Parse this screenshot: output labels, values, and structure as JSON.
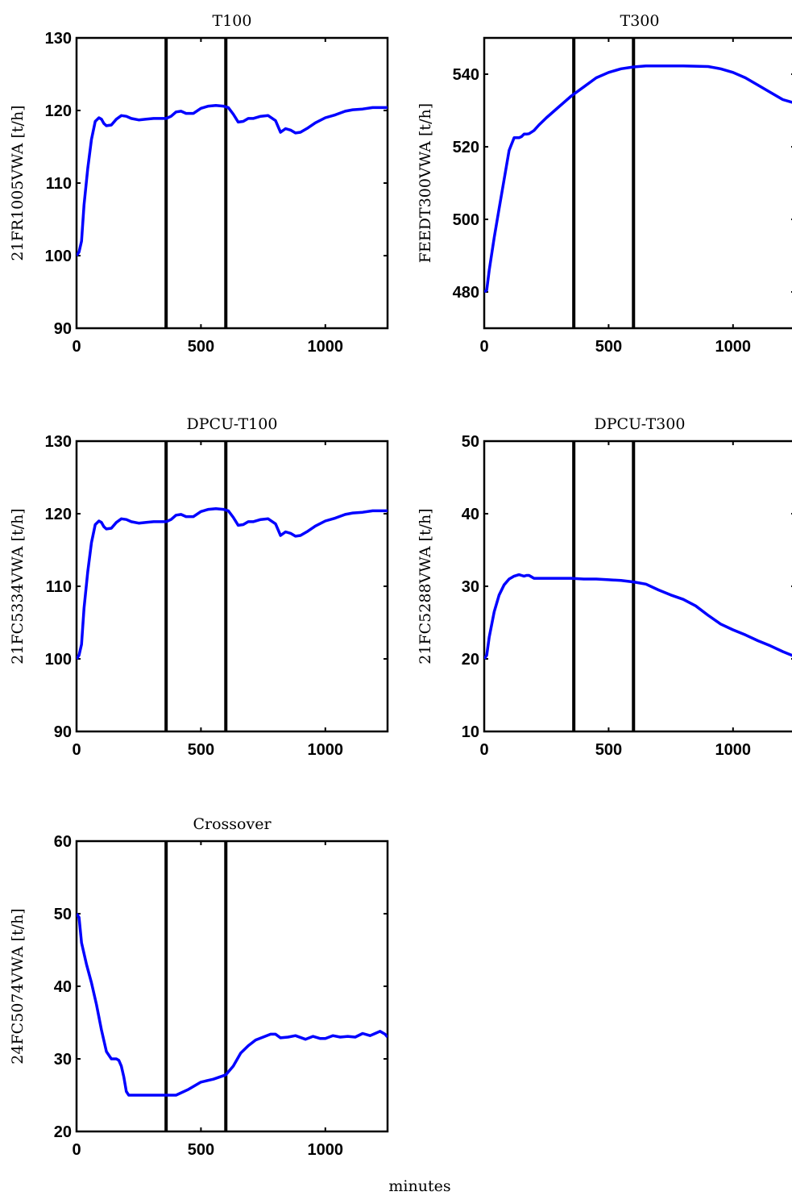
{
  "figure": {
    "xlabel": "minutes"
  },
  "chart_data": [
    {
      "type": "line",
      "title": "T100",
      "ylabel": "21FR1005VWA [t/h]",
      "xlim": [
        0,
        1250
      ],
      "ylim": [
        90,
        130
      ],
      "xticks": [
        0,
        500,
        1000
      ],
      "yticks": [
        90,
        100,
        110,
        120,
        130
      ],
      "vlines": [
        360,
        600
      ],
      "series": [
        {
          "color": "#0000ff",
          "x": [
            0,
            10,
            20,
            30,
            45,
            60,
            75,
            90,
            100,
            110,
            120,
            140,
            160,
            180,
            200,
            220,
            250,
            280,
            310,
            340,
            360,
            380,
            400,
            420,
            440,
            470,
            500,
            530,
            560,
            590,
            610,
            630,
            650,
            670,
            690,
            710,
            740,
            770,
            800,
            820,
            840,
            860,
            880,
            900,
            930,
            960,
            1000,
            1040,
            1080,
            1110,
            1150,
            1190,
            1220,
            1250
          ],
          "y": [
            100,
            100.5,
            102,
            107,
            112,
            116,
            118.5,
            119,
            118.8,
            118.2,
            117.9,
            118,
            118.8,
            119.3,
            119.2,
            118.9,
            118.7,
            118.8,
            118.9,
            118.9,
            118.9,
            119.2,
            119.8,
            119.9,
            119.6,
            119.6,
            120.3,
            120.6,
            120.7,
            120.6,
            120.4,
            119.5,
            118.4,
            118.5,
            118.9,
            118.9,
            119.2,
            119.3,
            118.6,
            117,
            117.5,
            117.3,
            116.9,
            117,
            117.6,
            118.3,
            119,
            119.4,
            119.9,
            120.1,
            120.2,
            120.4,
            120.4,
            120.4
          ]
        }
      ]
    },
    {
      "type": "line",
      "title": "T300",
      "ylabel": "FEEDT300VWA [t/h]",
      "xlim": [
        0,
        1250
      ],
      "ylim": [
        470,
        550
      ],
      "xticks": [
        0,
        500,
        1000
      ],
      "yticks": [
        480,
        500,
        520,
        540
      ],
      "vlines": [
        360,
        600
      ],
      "series": [
        {
          "color": "#0000ff",
          "x": [
            0,
            10,
            20,
            40,
            60,
            80,
            100,
            120,
            140,
            150,
            160,
            170,
            180,
            200,
            220,
            250,
            300,
            350,
            400,
            450,
            500,
            550,
            600,
            650,
            700,
            750,
            800,
            850,
            900,
            950,
            1000,
            1050,
            1100,
            1150,
            1200,
            1250
          ],
          "y": [
            480,
            480.5,
            486,
            495,
            503,
            511,
            519,
            522.5,
            522.5,
            522.8,
            523.5,
            523.5,
            523.6,
            524.5,
            526,
            528,
            531,
            534,
            536.5,
            539,
            540.5,
            541.5,
            542,
            542.3,
            542.3,
            542.3,
            542.3,
            542.2,
            542.1,
            541.5,
            540.5,
            539,
            537,
            535,
            533,
            532
          ]
        }
      ]
    },
    {
      "type": "line",
      "title": "DPCU-T100",
      "ylabel": "21FC5334VWA [t/h]",
      "xlim": [
        0,
        1250
      ],
      "ylim": [
        90,
        130
      ],
      "xticks": [
        0,
        500,
        1000
      ],
      "yticks": [
        90,
        100,
        110,
        120,
        130
      ],
      "vlines": [
        360,
        600
      ],
      "series": [
        {
          "color": "#0000ff",
          "x": [
            0,
            10,
            20,
            30,
            45,
            60,
            75,
            90,
            100,
            110,
            120,
            140,
            160,
            180,
            200,
            220,
            250,
            280,
            310,
            340,
            360,
            380,
            400,
            420,
            440,
            470,
            500,
            530,
            560,
            590,
            610,
            630,
            650,
            670,
            690,
            710,
            740,
            770,
            800,
            820,
            840,
            860,
            880,
            900,
            930,
            960,
            1000,
            1040,
            1080,
            1110,
            1150,
            1190,
            1220,
            1250
          ],
          "y": [
            100,
            100.5,
            102,
            107,
            112,
            116,
            118.5,
            119,
            118.8,
            118.2,
            117.9,
            118,
            118.8,
            119.3,
            119.2,
            118.9,
            118.7,
            118.8,
            118.9,
            118.9,
            118.9,
            119.2,
            119.8,
            119.9,
            119.6,
            119.6,
            120.3,
            120.6,
            120.7,
            120.6,
            120.4,
            119.5,
            118.4,
            118.5,
            118.9,
            118.9,
            119.2,
            119.3,
            118.6,
            117,
            117.5,
            117.3,
            116.9,
            117,
            117.6,
            118.3,
            119,
            119.4,
            119.9,
            120.1,
            120.2,
            120.4,
            120.4,
            120.4
          ]
        }
      ]
    },
    {
      "type": "line",
      "title": "DPCU-T300",
      "ylabel": "21FC5288VWA [t/h]",
      "xlim": [
        0,
        1250
      ],
      "ylim": [
        10,
        50
      ],
      "xticks": [
        0,
        500,
        1000
      ],
      "yticks": [
        10,
        20,
        30,
        40,
        50
      ],
      "vlines": [
        360,
        600
      ],
      "series": [
        {
          "color": "#0000ff",
          "x": [
            0,
            10,
            20,
            40,
            60,
            80,
            100,
            120,
            140,
            150,
            160,
            170,
            180,
            190,
            200,
            210,
            220,
            250,
            300,
            350,
            400,
            450,
            500,
            550,
            600,
            650,
            700,
            750,
            800,
            850,
            900,
            950,
            1000,
            1050,
            1100,
            1150,
            1200,
            1250
          ],
          "y": [
            20,
            20.5,
            23,
            26.5,
            28.8,
            30.2,
            31,
            31.4,
            31.6,
            31.5,
            31.4,
            31.5,
            31.5,
            31.3,
            31.1,
            31.1,
            31.1,
            31.1,
            31.1,
            31.1,
            31,
            31,
            30.9,
            30.8,
            30.6,
            30.3,
            29.5,
            28.8,
            28.2,
            27.3,
            26,
            24.8,
            24,
            23.3,
            22.5,
            21.8,
            21,
            20.3
          ]
        }
      ]
    },
    {
      "type": "line",
      "title": "Crossover",
      "ylabel": "24FC5074VWA [t/h]",
      "xlim": [
        0,
        1250
      ],
      "ylim": [
        20,
        60
      ],
      "xticks": [
        0,
        500,
        1000
      ],
      "yticks": [
        20,
        30,
        40,
        50,
        60
      ],
      "vlines": [
        360,
        600
      ],
      "series": [
        {
          "color": "#0000ff",
          "x": [
            0,
            10,
            20,
            40,
            60,
            80,
            100,
            120,
            140,
            150,
            160,
            170,
            180,
            190,
            200,
            210,
            220,
            250,
            300,
            350,
            400,
            450,
            500,
            550,
            600,
            630,
            660,
            690,
            720,
            750,
            780,
            800,
            820,
            850,
            880,
            920,
            950,
            980,
            1000,
            1030,
            1060,
            1090,
            1120,
            1150,
            1180,
            1200,
            1220,
            1240,
            1250
          ],
          "y": [
            50,
            49.5,
            46,
            43,
            40.5,
            37.5,
            34,
            31,
            30,
            30,
            30,
            29.8,
            29,
            27.5,
            25.5,
            25,
            25,
            25,
            25,
            25,
            25,
            25.8,
            26.8,
            27.2,
            27.8,
            29,
            30.8,
            31.8,
            32.6,
            33,
            33.4,
            33.4,
            32.9,
            33,
            33.2,
            32.7,
            33.1,
            32.8,
            32.8,
            33.2,
            33,
            33.1,
            33,
            33.5,
            33.2,
            33.5,
            33.8,
            33.4,
            33
          ]
        }
      ]
    }
  ]
}
